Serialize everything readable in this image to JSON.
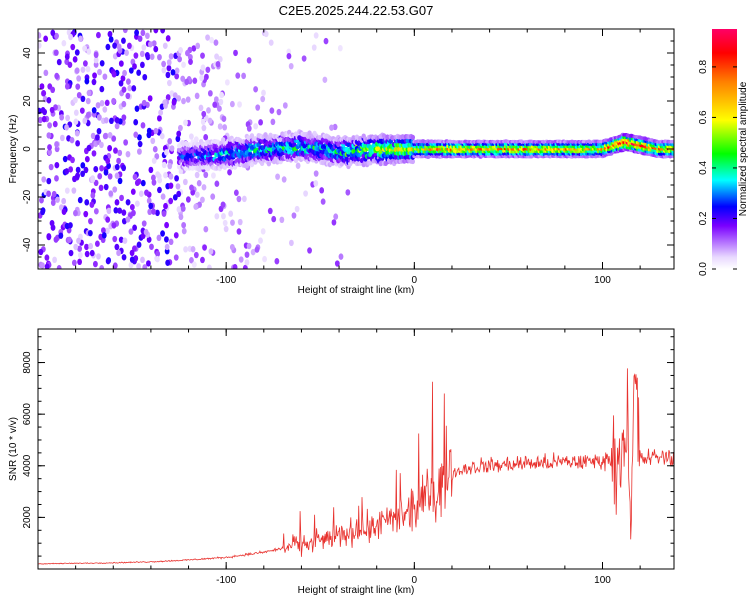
{
  "title": "C2E5.2025.244.22.53.G07",
  "colors": {
    "snr_line": "#e8322e",
    "frame": "#000000"
  },
  "chart_data": [
    {
      "type": "heatmap",
      "name": "spectrogram",
      "xlabel": "Height of straight line (km)",
      "ylabel": "Frequency (Hz)",
      "xlim": [
        -200,
        138
      ],
      "ylim": [
        -50,
        50
      ],
      "x_ticks": [
        -100,
        0,
        100
      ],
      "y_ticks": [
        -40,
        -20,
        0,
        20,
        40
      ],
      "x_tick_labels": [
        "-100",
        "0",
        "100"
      ],
      "y_tick_labels": [
        "-40",
        "-20",
        "0",
        "20",
        "40"
      ],
      "colorbar": {
        "label": "Normalized spectral amplitude",
        "range": [
          0,
          0.95
        ],
        "ticks": [
          0.0,
          0.2,
          0.4,
          0.6,
          0.8
        ],
        "tick_labels": [
          "0.0",
          "0.2",
          "0.4",
          "0.6",
          "0.8"
        ]
      },
      "signal_band": [
        {
          "x": -120,
          "freq": -3,
          "amp": 0.25
        },
        {
          "x": -100,
          "freq": -2,
          "amp": 0.35
        },
        {
          "x": -80,
          "freq": 0,
          "amp": 0.4
        },
        {
          "x": -60,
          "freq": 1,
          "amp": 0.4
        },
        {
          "x": -40,
          "freq": -1,
          "amp": 0.4
        },
        {
          "x": -20,
          "freq": 0,
          "amp": 0.55
        },
        {
          "x": 0,
          "freq": 0,
          "amp": 0.6
        },
        {
          "x": 20,
          "freq": 0,
          "amp": 0.7
        },
        {
          "x": 60,
          "freq": 0,
          "amp": 0.7
        },
        {
          "x": 100,
          "freq": 0,
          "amp": 0.65
        },
        {
          "x": 112,
          "freq": 3,
          "amp": 0.9
        },
        {
          "x": 130,
          "freq": 0,
          "amp": 0.7
        }
      ]
    },
    {
      "type": "line",
      "name": "snr",
      "xlabel": "Height of straight line (km)",
      "ylabel": "SNR (10 * v/v)",
      "xlim": [
        -200,
        138
      ],
      "ylim": [
        0,
        9300
      ],
      "x_ticks": [
        -100,
        0,
        100
      ],
      "y_ticks": [
        2000,
        4000,
        6000,
        8000
      ],
      "x_tick_labels": [
        "-100",
        "0",
        "100"
      ],
      "y_tick_labels": [
        "2000",
        "4000",
        "6000",
        "8000"
      ],
      "series": [
        {
          "name": "SNR",
          "x": [
            -200,
            -180,
            -160,
            -140,
            -120,
            -100,
            -90,
            -80,
            -70,
            -60,
            -50,
            -40,
            -30,
            -20,
            -10,
            0,
            5,
            10,
            15,
            20,
            25,
            30,
            40,
            50,
            60,
            70,
            80,
            90,
            100,
            105,
            110,
            113,
            115,
            117,
            120,
            125,
            130,
            138
          ],
          "y": [
            200,
            220,
            240,
            280,
            350,
            450,
            550,
            650,
            800,
            950,
            1100,
            1300,
            1500,
            1700,
            1900,
            2200,
            2600,
            3000,
            3400,
            3700,
            3850,
            3950,
            4000,
            4050,
            4100,
            4100,
            4150,
            4150,
            4200,
            4300,
            4400,
            6500,
            1000,
            7500,
            4250,
            4300,
            4350,
            4300
          ]
        }
      ]
    }
  ]
}
